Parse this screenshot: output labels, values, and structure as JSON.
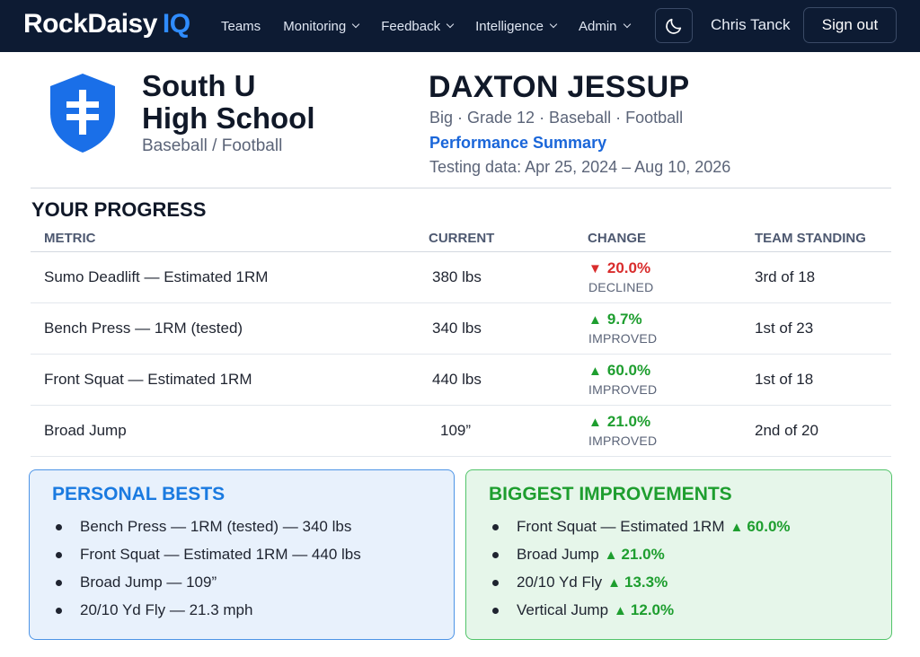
{
  "nav": {
    "brand": "RockDaisy",
    "brand_suffix": "IQ",
    "items": [
      {
        "label": "Teams",
        "dropdown": false
      },
      {
        "label": "Monitoring",
        "dropdown": true
      },
      {
        "label": "Feedback",
        "dropdown": true
      },
      {
        "label": "Intelligence",
        "dropdown": true
      },
      {
        "label": "Admin",
        "dropdown": true
      }
    ],
    "theme_icon": "moon-icon",
    "user_name": "Chris Tanck",
    "signout_label": "Sign out"
  },
  "header": {
    "school_line1": "South U",
    "school_line2": "High School",
    "school_sports": "Baseball / Football",
    "athlete_name": "DAXTON JESSUP",
    "athlete_meta": "Big · Grade 12 · Baseball · Football",
    "report_title": "Performance Summary",
    "date_range": "Testing data: Apr 25, 2024 – Aug 10, 2026"
  },
  "progress": {
    "title": "YOUR PROGRESS",
    "columns": [
      "METRIC",
      "CURRENT",
      "CHANGE",
      "TEAM STANDING"
    ],
    "rows": [
      {
        "metric": "Sumo Deadlift — Estimated 1RM",
        "current": "380 lbs",
        "change": "20.0%",
        "direction": "down",
        "change_label": "DECLINED",
        "standing": "3rd of 18"
      },
      {
        "metric": "Bench Press — 1RM (tested)",
        "current": "340 lbs",
        "change": "9.7%",
        "direction": "up",
        "change_label": "IMPROVED",
        "standing": "1st of 23"
      },
      {
        "metric": "Front Squat — Estimated 1RM",
        "current": "440 lbs",
        "change": "60.0%",
        "direction": "up",
        "change_label": "IMPROVED",
        "standing": "1st of 18"
      },
      {
        "metric": "Broad Jump",
        "current": "109”",
        "change": "21.0%",
        "direction": "up",
        "change_label": "IMPROVED",
        "standing": "2nd of 20"
      }
    ]
  },
  "personal_bests": {
    "title": "PERSONAL BESTS",
    "items": [
      "Bench Press — 1RM (tested) — 340 lbs",
      "Front Squat — Estimated 1RM — 440 lbs",
      "Broad Jump — 109”",
      "20/10 Yd Fly — 21.3 mph"
    ]
  },
  "biggest_improvements": {
    "title": "BIGGEST IMPROVEMENTS",
    "items": [
      {
        "label": "Front Squat — Estimated 1RM",
        "value": "60.0%"
      },
      {
        "label": "Broad Jump",
        "value": "21.0%"
      },
      {
        "label": "20/10 Yd Fly",
        "value": "13.3%"
      },
      {
        "label": "Vertical Jump",
        "value": "12.0%"
      }
    ]
  },
  "colors": {
    "nav_bg": "#0d1b33",
    "brand_accent": "#2f8cff",
    "improved": "#1e9e2f",
    "declined": "#d92c2c",
    "highlight_blue": "#1a66d9"
  }
}
